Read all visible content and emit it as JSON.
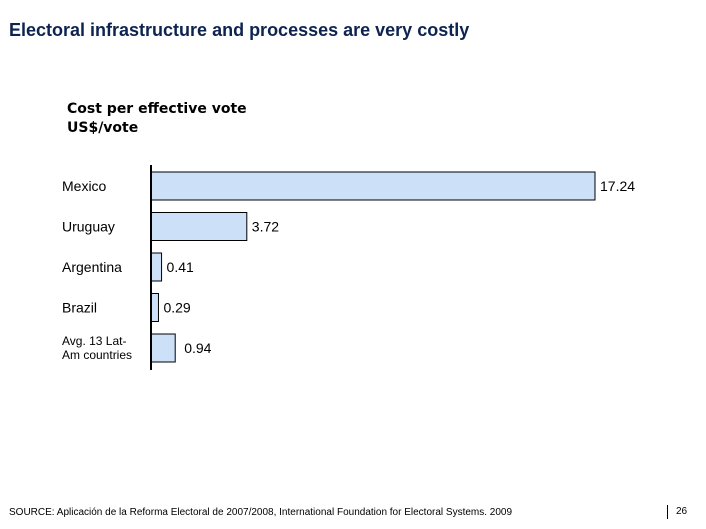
{
  "header": {
    "title": "Electoral infrastructure and processes are very costly"
  },
  "footer": {
    "source": "SOURCE: Aplicación de la Reforma Electoral de 2007/2008, International Foundation for Electoral Systems. 2009",
    "page_number": "26"
  },
  "chart_data": {
    "type": "bar",
    "orientation": "horizontal",
    "title": "Cost per effective vote",
    "unit": "US$/vote",
    "categories": [
      "Mexico",
      "Uruguay",
      "Argentina",
      "Brazil",
      "Avg. 13 Lat-Am countries"
    ],
    "values": [
      17.24,
      3.72,
      0.41,
      0.29,
      0.94
    ],
    "labels": [
      "17.24",
      "3.72",
      "0.41",
      "0.29",
      "0.94"
    ],
    "bar_color": "#cce0f8",
    "grid": false
  }
}
